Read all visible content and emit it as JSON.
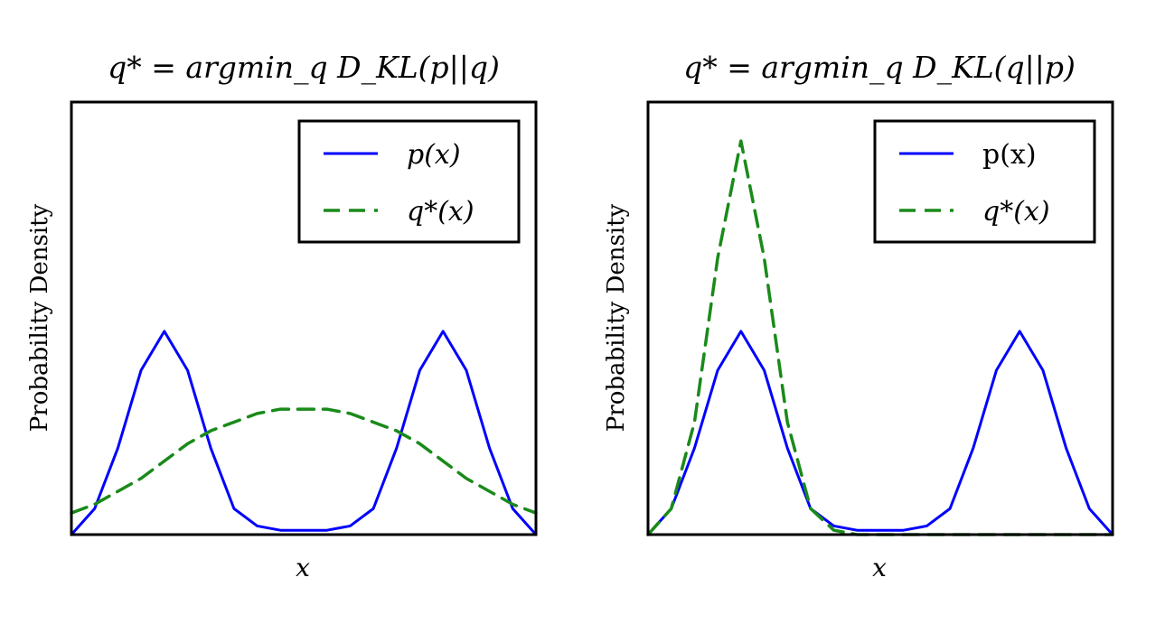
{
  "colors": {
    "p": "#0000ff",
    "q": "#1a8a1a",
    "axes": "#000000",
    "background": "#ffffff"
  },
  "chart_data": [
    {
      "type": "line",
      "title": "q* = argmin_q D_KL(p||q)",
      "xlabel": "x",
      "ylabel": "Probability Density",
      "xlim": [
        -2.5,
        2.5
      ],
      "ylim": [
        0,
        1.0
      ],
      "xticks": [],
      "yticks": [],
      "grid": false,
      "legend": {
        "position": "top-right",
        "entries": [
          "p(x)",
          "q*(x)"
        ]
      },
      "series": [
        {
          "name": "p(x)",
          "style": "solid",
          "x": [
            -2.5,
            -2.25,
            -2.0,
            -1.75,
            -1.5,
            -1.25,
            -1.0,
            -0.75,
            -0.5,
            -0.25,
            0.0,
            0.25,
            0.5,
            0.75,
            1.0,
            1.25,
            1.5,
            1.75,
            2.0,
            2.25,
            2.5
          ],
          "y": [
            0.0,
            0.06,
            0.2,
            0.38,
            0.47,
            0.38,
            0.2,
            0.06,
            0.02,
            0.01,
            0.01,
            0.01,
            0.02,
            0.06,
            0.2,
            0.38,
            0.47,
            0.38,
            0.2,
            0.06,
            0.0
          ]
        },
        {
          "name": "q*(x)",
          "style": "dashed",
          "x": [
            -2.5,
            -2.25,
            -2.0,
            -1.75,
            -1.5,
            -1.25,
            -1.0,
            -0.75,
            -0.5,
            -0.25,
            0.0,
            0.25,
            0.5,
            0.75,
            1.0,
            1.25,
            1.5,
            1.75,
            2.0,
            2.25,
            2.5
          ],
          "y": [
            0.05,
            0.07,
            0.1,
            0.13,
            0.17,
            0.21,
            0.24,
            0.26,
            0.28,
            0.29,
            0.29,
            0.29,
            0.28,
            0.26,
            0.24,
            0.21,
            0.17,
            0.13,
            0.1,
            0.07,
            0.05
          ]
        }
      ]
    },
    {
      "type": "line",
      "title": "q* = argmin_q D_KL(q||p)",
      "xlabel": "x",
      "ylabel": "Probability Density",
      "xlim": [
        -2.5,
        2.5
      ],
      "ylim": [
        0,
        1.0
      ],
      "xticks": [],
      "yticks": [],
      "grid": false,
      "legend": {
        "position": "top-right",
        "entries": [
          "p(x)",
          "q*(x)"
        ]
      },
      "series": [
        {
          "name": "p(x)",
          "style": "solid",
          "x": [
            -2.5,
            -2.25,
            -2.0,
            -1.75,
            -1.5,
            -1.25,
            -1.0,
            -0.75,
            -0.5,
            -0.25,
            0.0,
            0.25,
            0.5,
            0.75,
            1.0,
            1.25,
            1.5,
            1.75,
            2.0,
            2.25,
            2.5
          ],
          "y": [
            0.0,
            0.06,
            0.2,
            0.38,
            0.47,
            0.38,
            0.2,
            0.06,
            0.02,
            0.01,
            0.01,
            0.01,
            0.02,
            0.06,
            0.2,
            0.38,
            0.47,
            0.38,
            0.2,
            0.06,
            0.0
          ]
        },
        {
          "name": "q*(x)",
          "style": "dashed",
          "x": [
            -2.5,
            -2.25,
            -2.0,
            -1.75,
            -1.5,
            -1.25,
            -1.0,
            -0.75,
            -0.5,
            -0.25,
            0.0,
            0.25,
            0.5,
            0.75,
            1.0,
            1.25,
            1.5,
            1.75,
            2.0,
            2.25,
            2.5
          ],
          "y": [
            0.0,
            0.06,
            0.26,
            0.64,
            0.91,
            0.64,
            0.26,
            0.06,
            0.01,
            0.0,
            0.0,
            0.0,
            0.0,
            0.0,
            0.0,
            0.0,
            0.0,
            0.0,
            0.0,
            0.0,
            0.0
          ]
        }
      ]
    }
  ]
}
